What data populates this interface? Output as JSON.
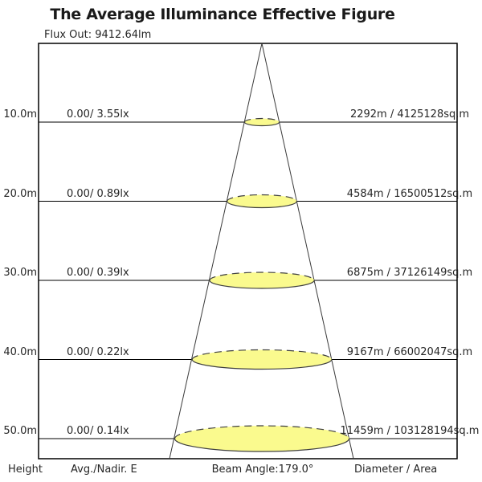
{
  "title": "The Average Illuminance Effective Figure",
  "flux_label": "Flux Out: 9412.64lm",
  "rows": [
    {
      "height": "10.0m",
      "avg_nadir": "0.00/ 3.55lx",
      "diameter_area": "2292m / 4125128sq.m"
    },
    {
      "height": "20.0m",
      "avg_nadir": "0.00/ 0.89lx",
      "diameter_area": "4584m / 16500512sq.m"
    },
    {
      "height": "30.0m",
      "avg_nadir": "0.00/ 0.39lx",
      "diameter_area": "6875m / 37126149sq.m"
    },
    {
      "height": "40.0m",
      "avg_nadir": "0.00/ 0.22lx",
      "diameter_area": "9167m / 66002047sq.m"
    },
    {
      "height": "50.0m",
      "avg_nadir": "0.00/ 0.14lx",
      "diameter_area": "11459m / 103128194sq.m"
    }
  ],
  "footer": {
    "height_label": "Height",
    "avg_label": "Avg./Nadir. E",
    "beam_angle_label": "Beam Angle:179.0°",
    "diameter_label": "Diameter / Area"
  },
  "colors": {
    "title_text": "#1a1a1a",
    "body_text": "#262626",
    "box_border": "#000000",
    "level_line": "#000000",
    "cone_line": "#3a3a3a",
    "ellipse_fill": "#FAFA8E",
    "ellipse_stroke": "#3f3f3f",
    "background": "#ffffff"
  },
  "chart_data": {
    "type": "table",
    "title": "The Average Illuminance Effective Figure",
    "flux_out_lm": 9412.64,
    "beam_angle_deg": 179.0,
    "columns": [
      "Height",
      "Avg./Nadir. E",
      "Beam Angle",
      "Diameter / Area"
    ],
    "rows": [
      {
        "height_m": 10.0,
        "avg_lx": 0.0,
        "nadir_e_lx": 3.55,
        "diameter_m": 2292,
        "area_sqm": 4125128
      },
      {
        "height_m": 20.0,
        "avg_lx": 0.0,
        "nadir_e_lx": 0.89,
        "diameter_m": 4584,
        "area_sqm": 16500512
      },
      {
        "height_m": 30.0,
        "avg_lx": 0.0,
        "nadir_e_lx": 0.39,
        "diameter_m": 6875,
        "area_sqm": 37126149
      },
      {
        "height_m": 40.0,
        "avg_lx": 0.0,
        "nadir_e_lx": 0.22,
        "diameter_m": 9167,
        "area_sqm": 66002047
      },
      {
        "height_m": 50.0,
        "avg_lx": 0.0,
        "nadir_e_lx": 0.14,
        "diameter_m": 11459,
        "area_sqm": 103128194
      }
    ],
    "legend": "none",
    "notes": "Beam cone diagram: apex at luminaire, yellow ellipses mark illuminated spot at each mounting height"
  }
}
